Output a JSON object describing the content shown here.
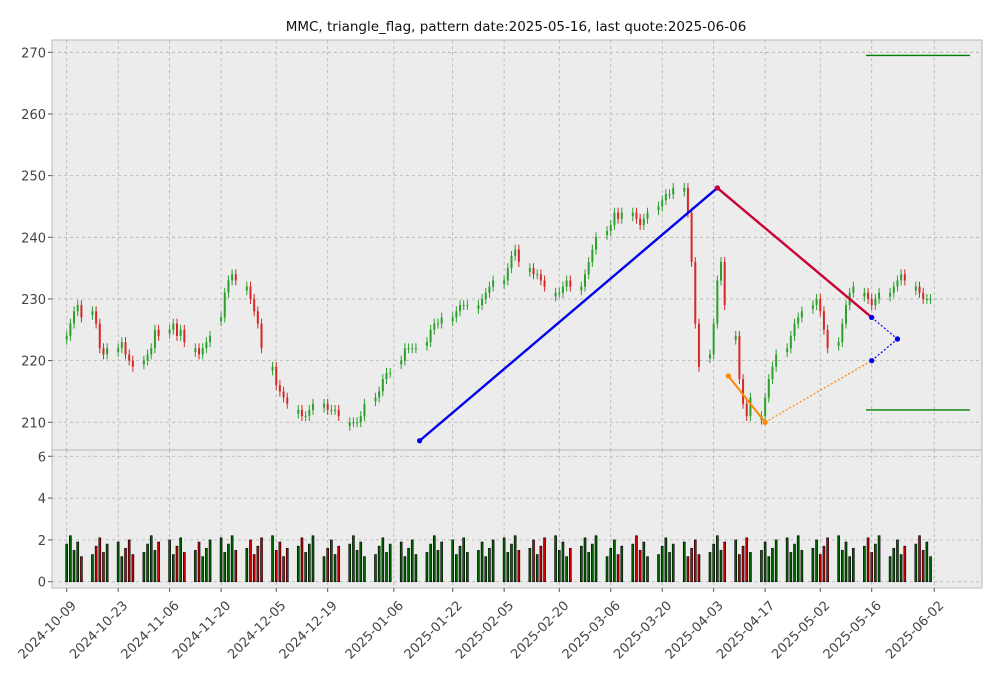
{
  "chart_data": {
    "type": "candlestick",
    "title": "MMC, triangle_flag, pattern date:2025-05-16, last quote:2025-06-06",
    "price_axis": {
      "ylim": [
        205.5,
        272
      ],
      "ticks": [
        210,
        220,
        230,
        240,
        250,
        260,
        270
      ]
    },
    "volume_axis": {
      "ylim": [
        -0.3,
        6.3
      ],
      "ticks": [
        0,
        2,
        4,
        6
      ]
    },
    "x_axis": {
      "xlim": [
        "2024-10-05",
        "2025-06-15"
      ],
      "ticks": [
        "2024-10-09",
        "2024-10-23",
        "2024-11-06",
        "2024-11-20",
        "2024-12-05",
        "2024-12-19",
        "2025-01-06",
        "2025-01-22",
        "2025-02-05",
        "2025-02-20",
        "2025-03-06",
        "2025-03-20",
        "2025-04-03",
        "2025-04-17",
        "2025-05-02",
        "2025-05-16",
        "2025-06-02"
      ]
    },
    "grid": true,
    "colors": {
      "up": "#2ca02c",
      "down": "#d62728",
      "pole": "#0000ee",
      "upper": "#cc0033",
      "lower": "#ff8800",
      "target": "#008000",
      "background": "#ececec"
    },
    "daily_closes": [
      [
        "2024-10-09",
        [
          224,
          226,
          228,
          229,
          227
        ]
      ],
      [
        "2024-10-16",
        [
          228,
          226,
          222,
          221,
          222
        ]
      ],
      [
        "2024-10-23",
        [
          222,
          223,
          221,
          220,
          219
        ]
      ],
      [
        "2024-10-30",
        [
          220,
          221,
          222,
          225,
          224
        ]
      ],
      [
        "2024-11-06",
        [
          225,
          226,
          224,
          225,
          223
        ]
      ],
      [
        "2024-11-13",
        [
          222,
          221,
          222,
          223,
          224
        ]
      ],
      [
        "2024-11-20",
        [
          227,
          231,
          233,
          234,
          233
        ]
      ],
      [
        "2024-11-27",
        [
          232,
          230,
          228,
          226,
          222
        ]
      ],
      [
        "2024-12-04",
        [
          219,
          216,
          215,
          214,
          213
        ]
      ],
      [
        "2024-12-11",
        [
          212,
          211,
          211,
          212,
          213
        ]
      ],
      [
        "2024-12-18",
        [
          213,
          212,
          212,
          212,
          211
        ]
      ],
      [
        "2024-12-25",
        [
          210,
          210,
          210,
          211,
          213
        ]
      ],
      [
        "2025-01-01",
        [
          214,
          215,
          217,
          218,
          218
        ]
      ],
      [
        "2025-01-08",
        [
          220,
          222,
          222,
          222,
          222
        ]
      ],
      [
        "2025-01-15",
        [
          223,
          225,
          226,
          226,
          227
        ]
      ],
      [
        "2025-01-22",
        [
          227,
          228,
          229,
          229,
          229
        ]
      ],
      [
        "2025-01-29",
        [
          229,
          230,
          231,
          232,
          233
        ]
      ],
      [
        "2025-02-05",
        [
          233,
          235,
          237,
          238,
          236
        ]
      ],
      [
        "2025-02-12",
        [
          235,
          234,
          234,
          233,
          232
        ]
      ],
      [
        "2025-02-19",
        [
          231,
          231,
          232,
          233,
          232
        ]
      ],
      [
        "2025-02-26",
        [
          232,
          234,
          236,
          238,
          240
        ]
      ],
      [
        "2025-03-05",
        [
          241,
          242,
          244,
          243,
          244
        ]
      ],
      [
        "2025-03-12",
        [
          244,
          243,
          242,
          243,
          244
        ]
      ],
      [
        "2025-03-19",
        [
          245,
          246,
          247,
          247,
          248
        ]
      ],
      [
        "2025-03-26",
        [
          248,
          244,
          236,
          226,
          219
        ]
      ],
      [
        "2025-04-02",
        [
          221,
          226,
          233,
          236,
          229
        ]
      ],
      [
        "2025-04-09",
        [
          224,
          217,
          213,
          211,
          214
        ]
      ],
      [
        "2025-04-16",
        [
          211,
          214,
          217,
          219,
          221
        ]
      ],
      [
        "2025-04-23",
        [
          222,
          224,
          226,
          227,
          228
        ]
      ],
      [
        "2025-04-30",
        [
          229,
          230,
          228,
          225,
          222
        ]
      ],
      [
        "2025-05-07",
        [
          223,
          226,
          229,
          231,
          232
        ]
      ],
      [
        "2025-05-14",
        [
          231,
          230,
          229,
          230,
          231
        ]
      ],
      [
        "2025-05-21",
        [
          231,
          232,
          233,
          234,
          233
        ]
      ],
      [
        "2025-05-28",
        [
          232,
          231,
          230,
          230,
          230
        ]
      ]
    ],
    "volume": [],
    "pattern_lines": [
      {
        "name": "pole",
        "points": [
          [
            "2025-01-13",
            207
          ],
          [
            "2025-04-04",
            248
          ]
        ]
      },
      {
        "name": "upper",
        "points": [
          [
            "2025-04-04",
            248
          ],
          [
            "2025-05-16",
            227
          ]
        ]
      },
      {
        "name": "lower",
        "points": [
          [
            "2025-04-07",
            217.5
          ],
          [
            "2025-04-17",
            210
          ]
        ]
      },
      {
        "name": "lower_ext",
        "points": [
          [
            "2025-04-17",
            210
          ],
          [
            "2025-05-16",
            220
          ]
        ]
      },
      {
        "name": "proj_upper",
        "points": [
          [
            "2025-05-16",
            227
          ],
          [
            "2025-05-23",
            223.5
          ]
        ]
      },
      {
        "name": "proj_lower",
        "points": [
          [
            "2025-05-16",
            220
          ],
          [
            "2025-05-23",
            223.5
          ]
        ]
      }
    ],
    "targets": [
      269.5,
      212
    ]
  }
}
